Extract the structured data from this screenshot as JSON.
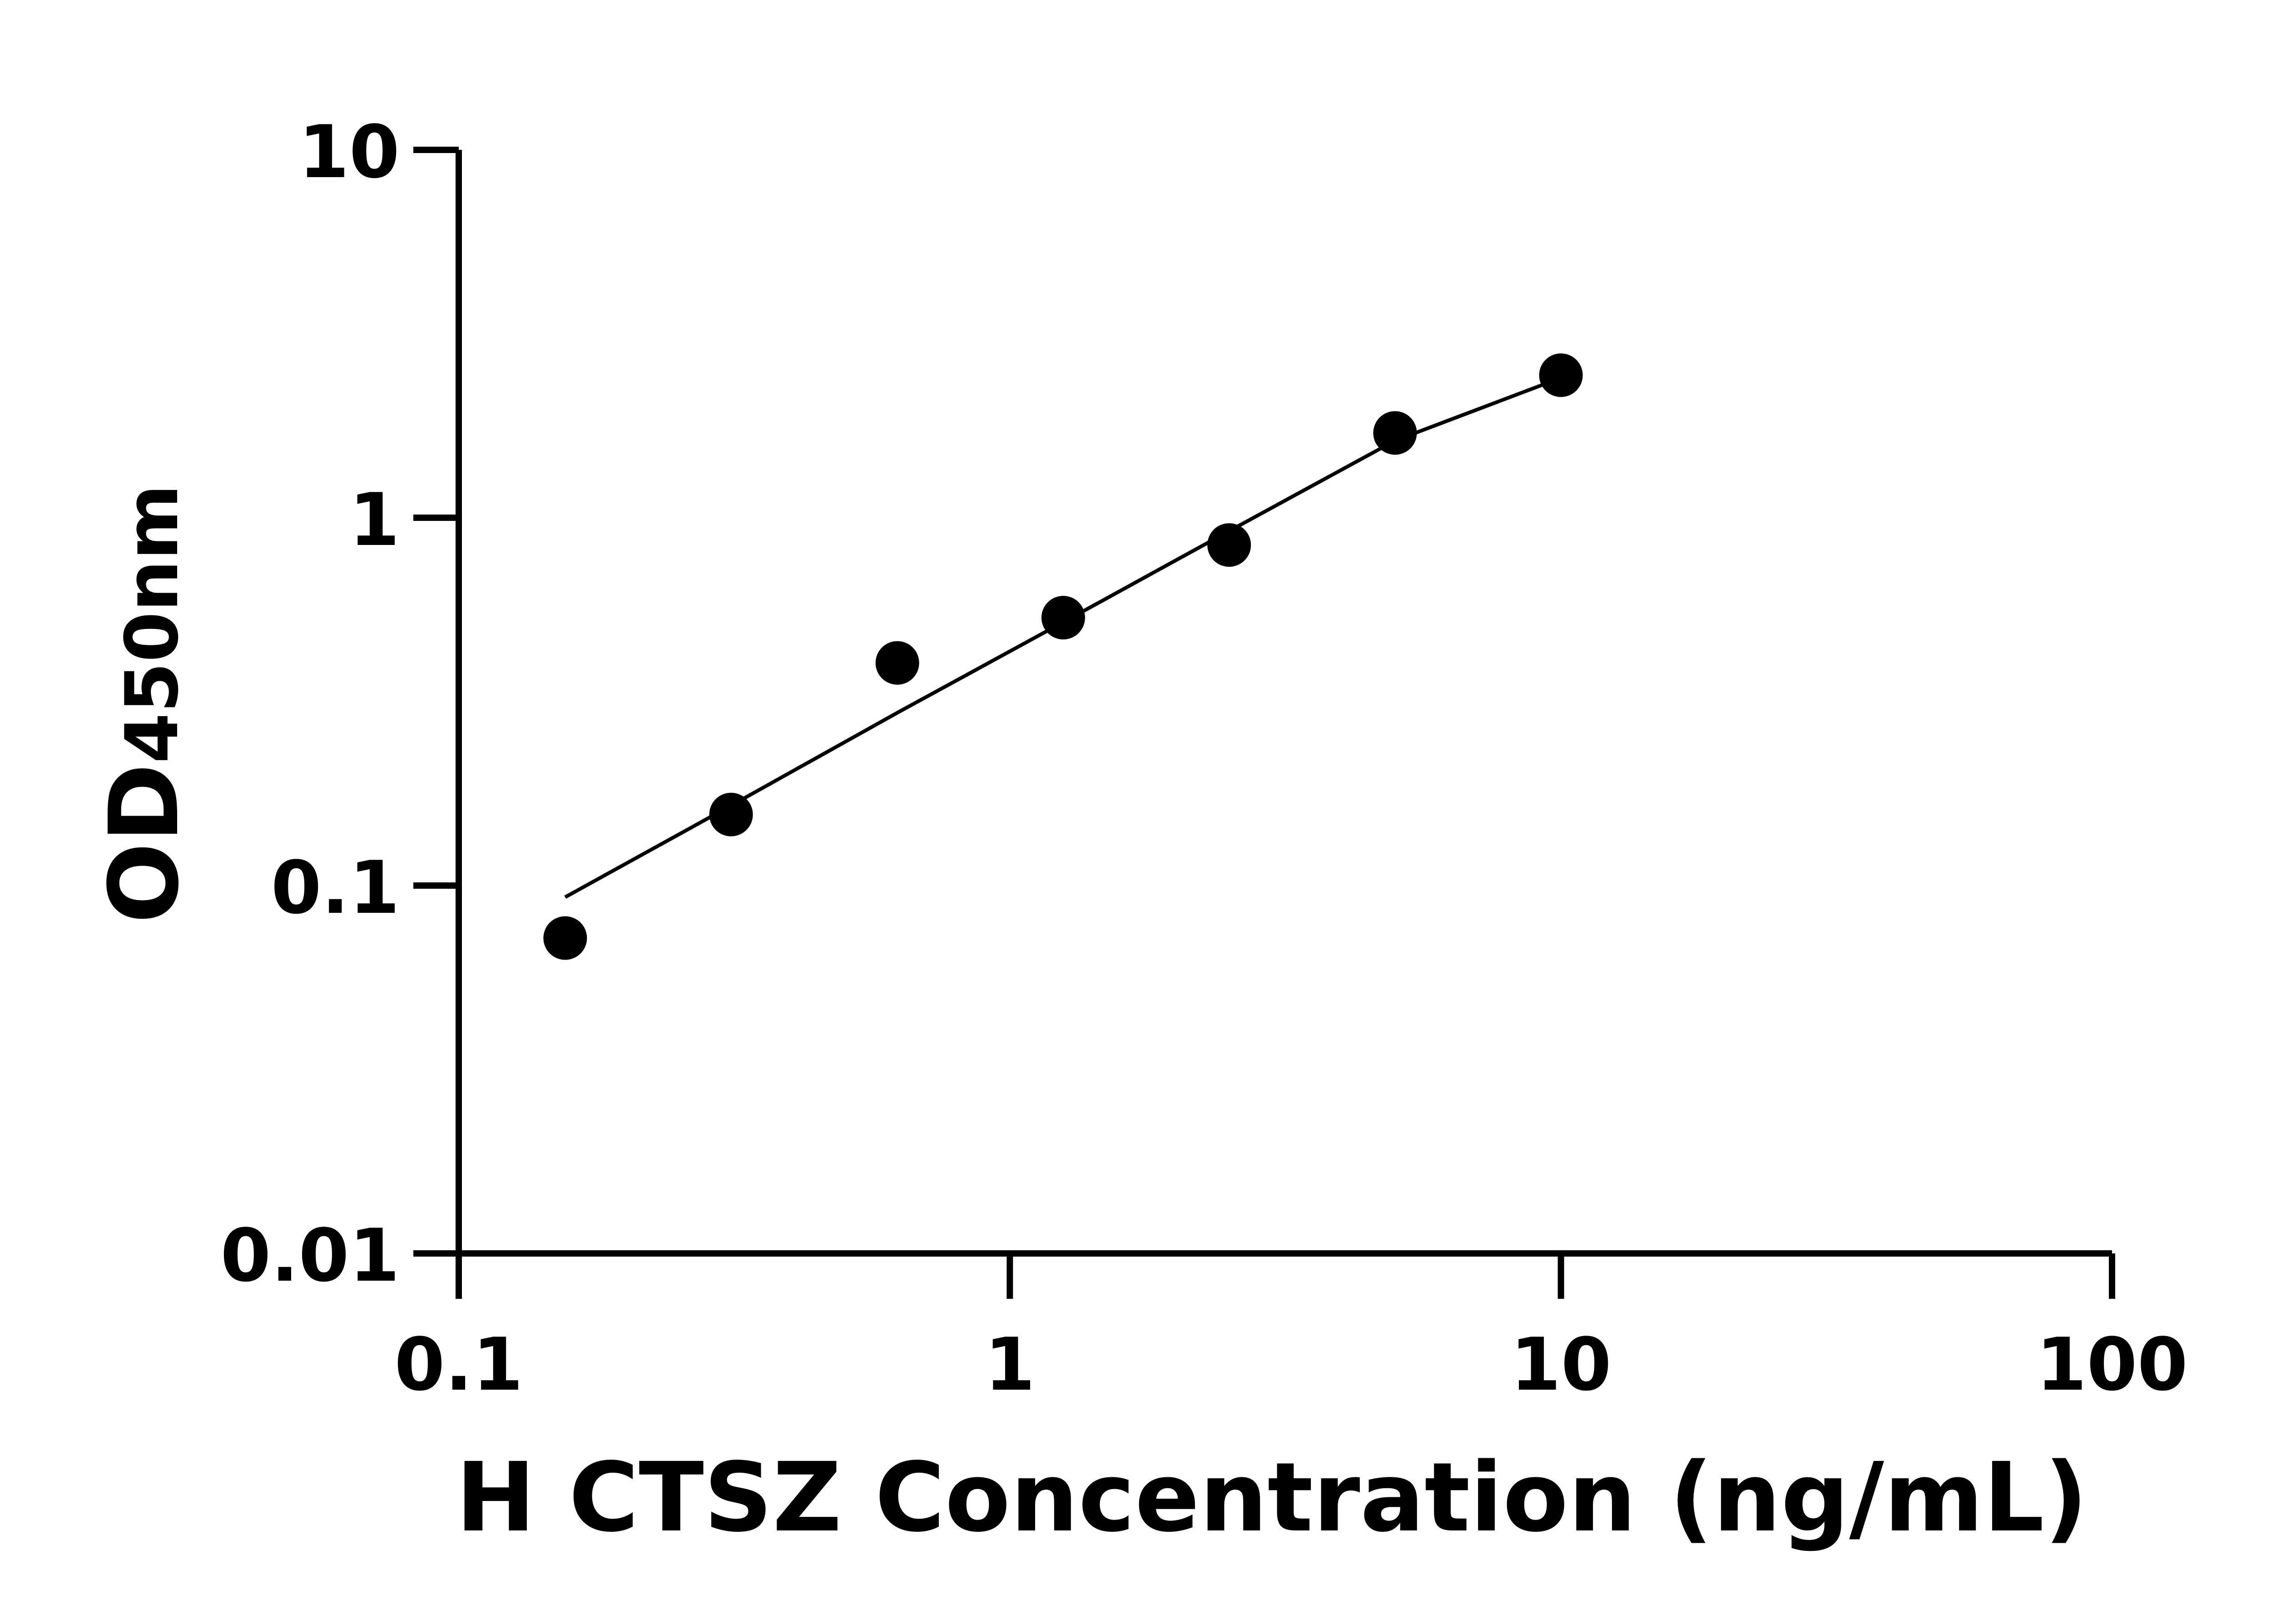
{
  "chart_data": {
    "type": "scatter",
    "xlabel": "H CTSZ Concentration (ng/mL)",
    "ylabel_main": "OD",
    "ylabel_sub": "450nm",
    "x_scale": "log",
    "y_scale": "log",
    "xlim": [
      0.1,
      100
    ],
    "ylim": [
      0.01,
      10
    ],
    "x_ticks": [
      0.1,
      1,
      10,
      100
    ],
    "x_tick_labels": [
      "0.1",
      "1",
      "10",
      "100"
    ],
    "y_ticks": [
      0.01,
      0.1,
      1,
      10
    ],
    "y_tick_labels": [
      "0.01",
      "0.1",
      "1",
      "10"
    ],
    "grid": false,
    "marker_color": "#000000",
    "points": [
      {
        "x": 0.156,
        "y": 0.072
      },
      {
        "x": 0.312,
        "y": 0.156
      },
      {
        "x": 0.625,
        "y": 0.403
      },
      {
        "x": 1.25,
        "y": 0.535
      },
      {
        "x": 2.5,
        "y": 0.843
      },
      {
        "x": 5,
        "y": 1.7
      },
      {
        "x": 10,
        "y": 2.44
      }
    ],
    "fit_curve": [
      {
        "x": 0.156,
        "y": 0.093
      },
      {
        "x": 0.312,
        "y": 0.165
      },
      {
        "x": 0.625,
        "y": 0.295
      },
      {
        "x": 1.25,
        "y": 0.52
      },
      {
        "x": 2.5,
        "y": 0.92
      },
      {
        "x": 5,
        "y": 1.62
      },
      {
        "x": 10,
        "y": 2.4
      }
    ]
  }
}
